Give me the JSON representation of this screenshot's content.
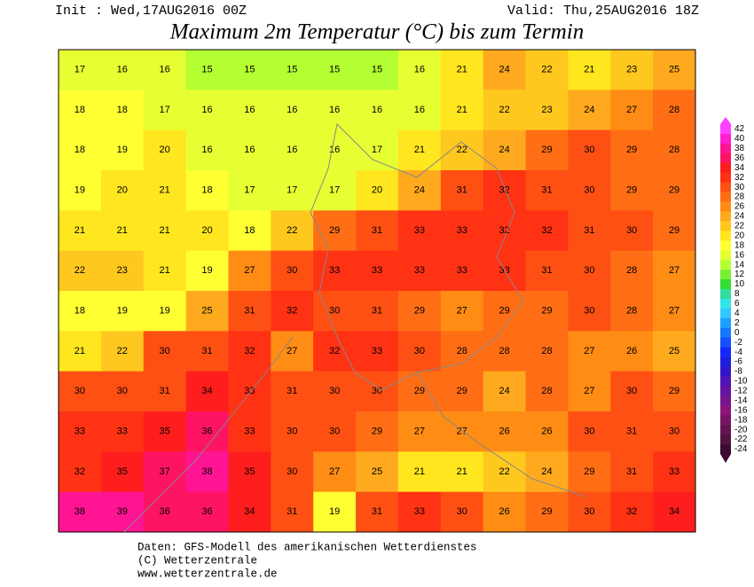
{
  "header": {
    "init": "Init : Wed,17AUG2016 00Z",
    "valid": "Valid: Thu,25AUG2016 18Z",
    "title": "Maximum 2m Temperatur (°C) bis zum Termin"
  },
  "map": {
    "values": [
      [
        17,
        16,
        16,
        15,
        15,
        15,
        15,
        15,
        16,
        21,
        24,
        22,
        21,
        23,
        25
      ],
      [
        18,
        18,
        17,
        16,
        16,
        16,
        16,
        16,
        16,
        21,
        22,
        23,
        24,
        27,
        28
      ],
      [
        18,
        19,
        20,
        16,
        16,
        16,
        16,
        17,
        21,
        22,
        24,
        29,
        30,
        29,
        28
      ],
      [
        19,
        20,
        21,
        18,
        17,
        17,
        17,
        20,
        24,
        31,
        32,
        31,
        30,
        29,
        29
      ],
      [
        21,
        21,
        21,
        20,
        18,
        22,
        29,
        31,
        33,
        33,
        32,
        32,
        31,
        30,
        29
      ],
      [
        22,
        23,
        21,
        19,
        27,
        30,
        33,
        33,
        33,
        33,
        33,
        31,
        30,
        28,
        27
      ],
      [
        18,
        19,
        19,
        25,
        31,
        32,
        30,
        31,
        29,
        27,
        29,
        29,
        30,
        28,
        27
      ],
      [
        21,
        22,
        30,
        31,
        32,
        27,
        32,
        33,
        30,
        28,
        28,
        28,
        27,
        26,
        25
      ],
      [
        30,
        30,
        31,
        34,
        33,
        31,
        30,
        30,
        29,
        29,
        24,
        28,
        27,
        30,
        29
      ],
      [
        33,
        33,
        35,
        36,
        33,
        30,
        30,
        29,
        27,
        27,
        26,
        26,
        30,
        31,
        30
      ],
      [
        32,
        35,
        37,
        38,
        35,
        30,
        27,
        25,
        21,
        21,
        22,
        24,
        29,
        31,
        33
      ],
      [
        38,
        39,
        36,
        36,
        34,
        31,
        19,
        31,
        33,
        30,
        26,
        29,
        30,
        32,
        34
      ]
    ]
  },
  "legend": {
    "levels": [
      42,
      40,
      38,
      36,
      34,
      32,
      30,
      28,
      26,
      24,
      22,
      20,
      18,
      16,
      14,
      12,
      10,
      8,
      6,
      4,
      2,
      0,
      -2,
      -4,
      -6,
      -8,
      -10,
      -12,
      -14,
      -16,
      -18,
      -20,
      -22,
      -24
    ],
    "colors": [
      "#ff40ff",
      "#ff20d0",
      "#ff1493",
      "#ff1464",
      "#ff1e1e",
      "#ff3214",
      "#ff5014",
      "#ff6e14",
      "#ff8c14",
      "#ffaa1e",
      "#ffc81e",
      "#ffe61e",
      "#ffff32",
      "#e6ff32",
      "#b4ff32",
      "#78f032",
      "#32dc32",
      "#32dca0",
      "#32e6e6",
      "#32c8ff",
      "#1ea0ff",
      "#1478ff",
      "#1450ff",
      "#1428ff",
      "#1e1edc",
      "#3214c8",
      "#5014b4",
      "#6414a0",
      "#78148c",
      "#8c1478",
      "#781464",
      "#641450",
      "#50143c",
      "#3c0a32"
    ]
  },
  "footer": {
    "lines": [
      "Daten: GFS-Modell des amerikanischen Wetterdienstes",
      "(C) Wetterzentrale",
      "www.wetterzentrale.de"
    ]
  }
}
